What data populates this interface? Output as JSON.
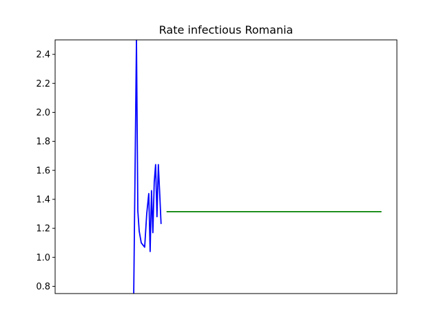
{
  "chart_data": {
    "type": "line",
    "title": "Rate infectious Romania",
    "xlabel": "",
    "ylabel": "",
    "xlim": [
      0,
      100
    ],
    "ylim": [
      0.75,
      2.5
    ],
    "yticks": [
      0.8,
      1.0,
      1.2,
      1.4,
      1.6,
      1.8,
      2.0,
      2.2,
      2.4
    ],
    "ytick_labels": [
      "0.8",
      "1.0",
      "1.2",
      "1.4",
      "1.6",
      "1.8",
      "2.0",
      "2.2",
      "2.4"
    ],
    "xticks_visible": false,
    "grid": false,
    "legend": "none",
    "series": [
      {
        "color": "#0000ff",
        "x": [
          23.0,
          23.8,
          24.2,
          24.6,
          25.2,
          26.2,
          26.8,
          27.4,
          27.8,
          28.2,
          28.6,
          29.0,
          29.4,
          29.8,
          30.2,
          30.6,
          31.0,
          31.4,
          31.8,
          32.2
        ],
        "y": [
          0.75,
          2.5,
          1.32,
          1.18,
          1.1,
          1.07,
          1.3,
          1.44,
          1.04,
          1.46,
          1.17,
          1.52,
          1.64,
          1.28,
          1.64,
          1.44,
          1.23,
          null,
          null,
          null
        ]
      },
      {
        "color": "#008000",
        "x": [
          32.6,
          95.5
        ],
        "y": [
          1.315,
          1.315
        ]
      }
    ]
  }
}
